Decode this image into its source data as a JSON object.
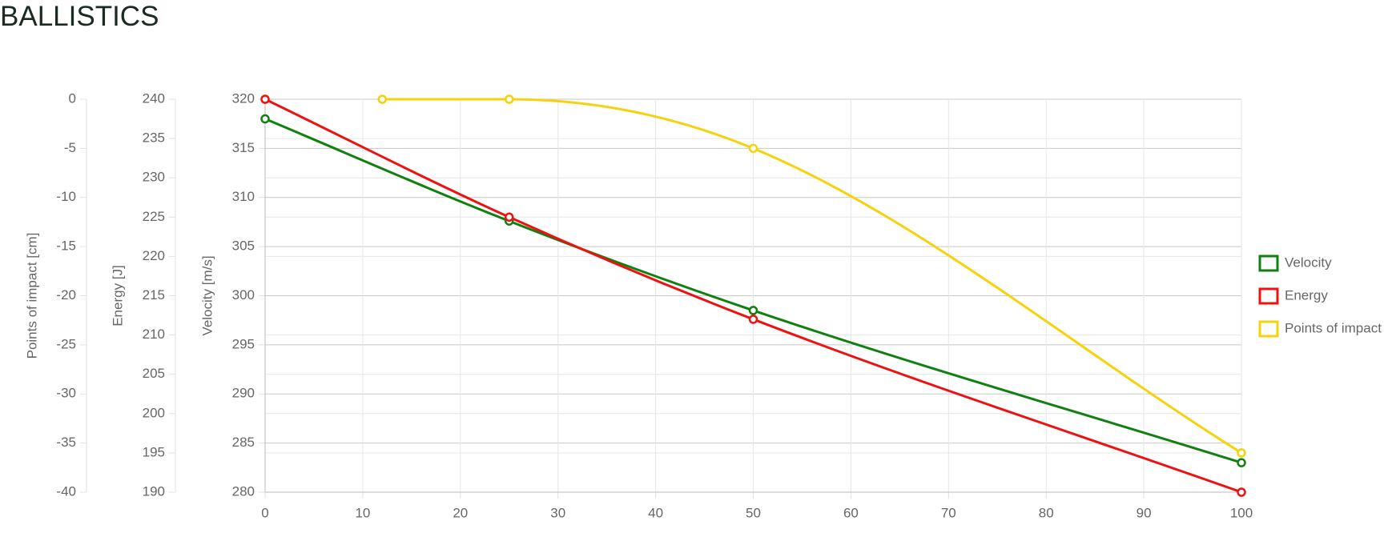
{
  "chart_data": {
    "type": "line",
    "title": "BALLISTICS",
    "xlim": [
      0,
      100
    ],
    "xticks": [
      0,
      10,
      20,
      30,
      40,
      50,
      60,
      70,
      80,
      90,
      100
    ],
    "ylabel": "Velocity [m/s]",
    "ylim": [
      280,
      320
    ],
    "yticks": [
      280,
      285,
      290,
      295,
      300,
      305,
      310,
      315,
      320
    ],
    "y2label": "Energy [J]",
    "y2lim": [
      190,
      240
    ],
    "y2ticks": [
      190,
      195,
      200,
      205,
      210,
      215,
      220,
      225,
      230,
      235,
      240
    ],
    "y3label": "Points of impact [cm]",
    "y3lim": [
      -40,
      0
    ],
    "y3ticks": [
      -40,
      -35,
      -30,
      -25,
      -20,
      -15,
      -10,
      -5,
      0
    ],
    "grid": true,
    "legend": "right",
    "series": [
      {
        "name": "Velocity",
        "color": "#108010",
        "axis": "y",
        "x": [
          0,
          25,
          50,
          100
        ],
        "values": [
          318,
          307.6,
          298.5,
          283
        ]
      },
      {
        "name": "Energy",
        "color": "#ee1111",
        "axis": "y2",
        "x": [
          0,
          25,
          50,
          100
        ],
        "values": [
          240,
          225,
          212,
          190
        ]
      },
      {
        "name": "Points of impact",
        "color": "#f5d20c",
        "axis": "y3",
        "x": [
          12,
          25,
          50,
          100
        ],
        "values": [
          0,
          0,
          -5,
          -36
        ]
      }
    ]
  }
}
